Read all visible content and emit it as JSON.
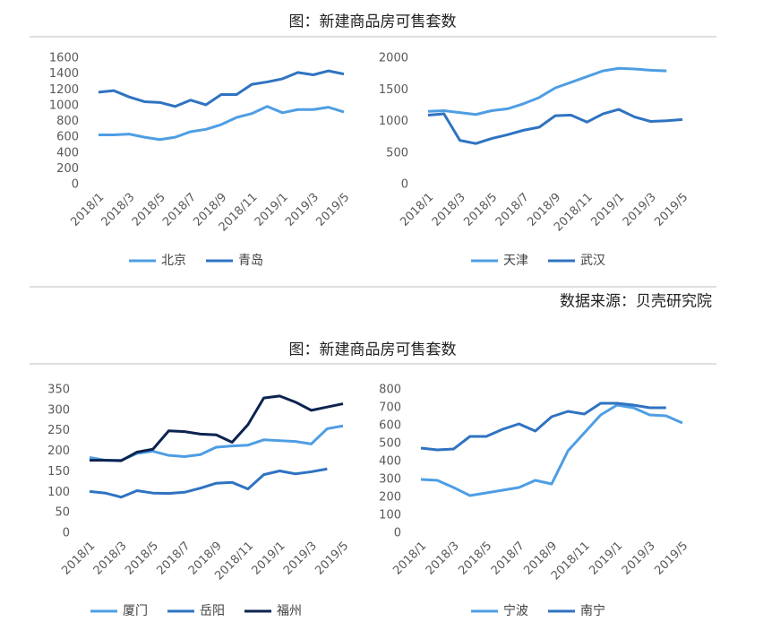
{
  "figures": [
    {
      "title": "图：新建商品房可售套数"
    },
    {
      "title": "图：新建商品房可售套数"
    }
  ],
  "source": "数据来源：贝壳研究院",
  "chart_data": [
    {
      "type": "line",
      "categories": [
        "2018/1",
        null,
        "2018/3",
        null,
        "2018/5",
        null,
        "2018/7",
        null,
        "2018/9",
        null,
        "2018/11",
        null,
        "2019/1",
        null,
        "2019/3",
        null,
        "2019/5"
      ],
      "ylim": [
        0,
        1600
      ],
      "yticks": [
        0,
        200,
        400,
        600,
        800,
        1000,
        1200,
        1400,
        1600
      ],
      "legend": "bottom",
      "series": [
        {
          "name": "北京",
          "color": "#4e9ee3",
          "values": [
            630,
            630,
            640,
            600,
            570,
            600,
            670,
            700,
            760,
            850,
            900,
            990,
            910,
            950,
            950,
            980,
            920
          ]
        },
        {
          "name": "青岛",
          "color": "#2f73c1",
          "values": [
            1170,
            1190,
            1110,
            1050,
            1040,
            990,
            1070,
            1010,
            1140,
            1140,
            1270,
            1300,
            1340,
            1420,
            1390,
            1440,
            1400
          ]
        }
      ]
    },
    {
      "type": "line",
      "categories": [
        "2018/1",
        null,
        "2018/3",
        null,
        "2018/5",
        null,
        "2018/7",
        null,
        "2018/9",
        null,
        "2018/11",
        null,
        "2019/1",
        null,
        "2019/3",
        null,
        "2019/5"
      ],
      "ylim": [
        0,
        2000
      ],
      "yticks": [
        0,
        500,
        1000,
        1500,
        2000
      ],
      "legend": "bottom",
      "series": [
        {
          "name": "天津",
          "color": "#4e9ee3",
          "values": [
            1160,
            1170,
            1140,
            1110,
            1170,
            1200,
            1280,
            1380,
            1530,
            1620,
            1710,
            1800,
            1840,
            1830,
            1810,
            1800,
            null
          ]
        },
        {
          "name": "武汉",
          "color": "#2f73c1",
          "values": [
            1100,
            1120,
            700,
            650,
            730,
            790,
            860,
            910,
            1090,
            1100,
            990,
            1120,
            1190,
            1070,
            1000,
            1010,
            1030
          ]
        }
      ]
    },
    {
      "type": "line",
      "categories": [
        "2018/1",
        null,
        "2018/3",
        null,
        "2018/5",
        null,
        "2018/7",
        null,
        "2018/9",
        null,
        "2018/11",
        null,
        "2019/1",
        null,
        "2019/3",
        null,
        "2019/5"
      ],
      "ylim": [
        0,
        350
      ],
      "yticks": [
        0,
        50,
        100,
        150,
        200,
        250,
        300,
        350
      ],
      "legend": "bottom",
      "series": [
        {
          "name": "厦门",
          "color": "#4e9ee3",
          "values": [
            185,
            178,
            178,
            195,
            200,
            190,
            187,
            192,
            210,
            213,
            215,
            228,
            226,
            224,
            218,
            255,
            262
          ]
        },
        {
          "name": "岳阳",
          "color": "#2f73c1",
          "values": [
            102,
            98,
            88,
            104,
            98,
            97,
            100,
            110,
            122,
            124,
            108,
            143,
            152,
            145,
            150,
            157,
            null
          ]
        },
        {
          "name": "福州",
          "color": "#0d2350",
          "values": [
            178,
            178,
            177,
            198,
            205,
            250,
            248,
            242,
            240,
            222,
            265,
            330,
            335,
            320,
            300,
            308,
            316
          ]
        }
      ]
    },
    {
      "type": "line",
      "categories": [
        "2018/1",
        null,
        "2018/3",
        null,
        "2018/5",
        null,
        "2018/7",
        null,
        "2018/9",
        null,
        "2018/11",
        null,
        "2019/1",
        null,
        "2019/3",
        null,
        "2019/5"
      ],
      "ylim": [
        0,
        800
      ],
      "yticks": [
        0,
        100,
        200,
        300,
        400,
        500,
        600,
        700,
        800
      ],
      "legend": "bottom",
      "series": [
        {
          "name": "宁波",
          "color": "#4e9ee3",
          "values": [
            300,
            295,
            255,
            210,
            225,
            240,
            255,
            295,
            275,
            460,
            560,
            660,
            715,
            700,
            660,
            655,
            615
          ]
        },
        {
          "name": "南宁",
          "color": "#2f73c1",
          "values": [
            475,
            465,
            470,
            540,
            540,
            580,
            610,
            570,
            650,
            680,
            665,
            725,
            725,
            715,
            700,
            700,
            null
          ]
        }
      ]
    }
  ]
}
